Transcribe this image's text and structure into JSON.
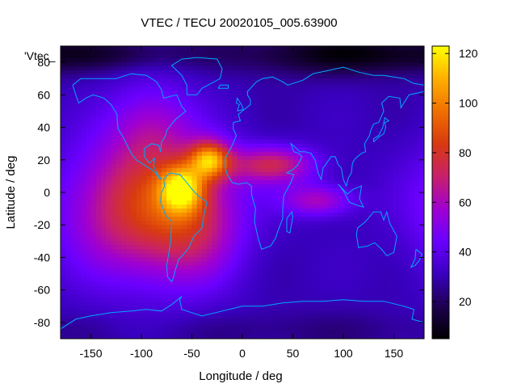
{
  "chart_data": {
    "type": "heatmap",
    "title": "VTEC / TECU 20020105_005.63900",
    "xlabel": "Longitude / deg",
    "ylabel": "Latitude / deg",
    "series_label": "'Vtec_",
    "xlim": [
      -180,
      180
    ],
    "ylim": [
      -90,
      90
    ],
    "xticks": [
      -150,
      -100,
      -50,
      0,
      50,
      100,
      150
    ],
    "yticks": [
      -80,
      -60,
      -40,
      -20,
      0,
      20,
      40,
      60,
      80
    ],
    "colorbar": {
      "range": [
        5,
        123
      ],
      "ticks": [
        20,
        40,
        60,
        80,
        100,
        120
      ],
      "stops": [
        "#000000",
        "#1e0050",
        "#3a00c0",
        "#6a00ff",
        "#a000d0",
        "#c8206a",
        "#d83a10",
        "#f07000",
        "#ffb000",
        "#ffff00"
      ]
    },
    "vtec_features": [
      {
        "lon": -60,
        "lat": 0,
        "value": 118
      },
      {
        "lon": -30,
        "lat": 20,
        "value": 122
      },
      {
        "lon": -100,
        "lat": -10,
        "value": 85
      },
      {
        "lon": 20,
        "lat": 15,
        "value": 75
      },
      {
        "lon": 80,
        "lat": -5,
        "value": 65
      },
      {
        "lon": -95,
        "lat": 45,
        "value": 65
      },
      {
        "lon": 100,
        "lat": 80,
        "value": 8
      }
    ],
    "background_level": 32,
    "grid": false,
    "colors": {
      "coastline": "#00a8ff"
    }
  }
}
